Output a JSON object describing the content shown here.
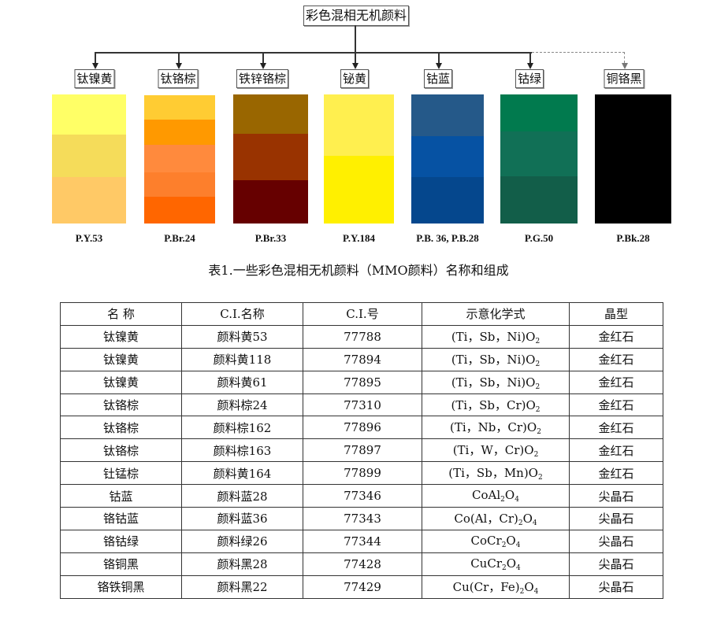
{
  "diagram": {
    "root": "彩色混相无机颜料",
    "children": [
      "钛镍黄",
      "钛铬棕",
      "铁锌铬棕",
      "铋黄",
      "钴蓝",
      "钴绿",
      "铜铬黑"
    ],
    "codes": [
      "P.Y.53",
      "P.Br.24",
      "P.Br.33",
      "P.Y.184",
      "P.B. 36, P.B.28",
      "P.G.50",
      "P.Bk.28"
    ],
    "swatch_colors": [
      [
        "#ffff66",
        "#f5dc5a",
        "#ffc966"
      ],
      [
        "#ffcc33",
        "#ff9900",
        "#ff8a3d",
        "#fd7f2c",
        "#ff6600"
      ],
      [
        "#996600",
        "#993300",
        "#660000"
      ],
      [
        "#ffef4f",
        "#fff000"
      ],
      [
        "#255989",
        "#0652a3",
        "#05478d"
      ],
      [
        "#017a4e",
        "#117056",
        "#125e49"
      ],
      [
        "#000000"
      ]
    ]
  },
  "caption": "表1.一些彩色混相无机颜料（MMO颜料）名称和组成",
  "table": {
    "headers": [
      "名 称",
      "C.I.名称",
      "C.I.号",
      "示意化学式",
      "晶型"
    ],
    "rows": [
      {
        "name": "钛镍黄",
        "ci_name": "颜料黄53",
        "ci_no": "77788",
        "formula": [
          [
            "t",
            "(Ti，Sb，Ni)O"
          ],
          [
            "s",
            "2"
          ]
        ],
        "crystal": "金红石"
      },
      {
        "name": "钛镍黄",
        "ci_name": "颜料黄118",
        "ci_no": "77894",
        "formula": [
          [
            "t",
            "(Ti，Sb，Ni)O"
          ],
          [
            "s",
            "2"
          ]
        ],
        "crystal": "金红石"
      },
      {
        "name": "钛镍黄",
        "ci_name": "颜料黄61",
        "ci_no": "77895",
        "formula": [
          [
            "t",
            "(Ti，Sb，Ni)O"
          ],
          [
            "s",
            "2"
          ]
        ],
        "crystal": "金红石"
      },
      {
        "name": "钛铬棕",
        "ci_name": "颜料棕24",
        "ci_no": "77310",
        "formula": [
          [
            "t",
            "(Ti，Sb，Cr)O"
          ],
          [
            "s",
            "2"
          ]
        ],
        "crystal": "金红石"
      },
      {
        "name": "钛铬棕",
        "ci_name": "颜料棕162",
        "ci_no": "77896",
        "formula": [
          [
            "t",
            "(Ti，Nb，Cr)O"
          ],
          [
            "s",
            "2"
          ]
        ],
        "crystal": "金红石"
      },
      {
        "name": "钛铬棕",
        "ci_name": "颜料棕163",
        "ci_no": "77897",
        "formula": [
          [
            "t",
            "(Ti，W，Cr)O"
          ],
          [
            "s",
            "2"
          ]
        ],
        "crystal": "金红石"
      },
      {
        "name": "钍锰棕",
        "ci_name": "颜料黄164",
        "ci_no": "77899",
        "formula": [
          [
            "t",
            "(Ti，Sb，Mn)O"
          ],
          [
            "s",
            "2"
          ]
        ],
        "crystal": "金红石"
      },
      {
        "name": "钴蓝",
        "ci_name": "颜料蓝28",
        "ci_no": "77346",
        "formula": [
          [
            "t",
            "CoAl"
          ],
          [
            "s",
            "2"
          ],
          [
            "t",
            "O"
          ],
          [
            "s",
            "4"
          ]
        ],
        "crystal": "尖晶石"
      },
      {
        "name": "铬钴蓝",
        "ci_name": "颜料蓝36",
        "ci_no": "77343",
        "formula": [
          [
            "t",
            "Co(Al，Cr)"
          ],
          [
            "s",
            "2"
          ],
          [
            "t",
            "O"
          ],
          [
            "s",
            "4"
          ]
        ],
        "crystal": "尖晶石"
      },
      {
        "name": "铬钴绿",
        "ci_name": "颜料绿26",
        "ci_no": "77344",
        "formula": [
          [
            "t",
            "CoCr"
          ],
          [
            "s",
            "2"
          ],
          [
            "t",
            "O"
          ],
          [
            "s",
            "4"
          ]
        ],
        "crystal": "尖晶石"
      },
      {
        "name": "铬铜黑",
        "ci_name": "颜料黑28",
        "ci_no": "77428",
        "formula": [
          [
            "t",
            "CuCr"
          ],
          [
            "s",
            "2"
          ],
          [
            "t",
            "O"
          ],
          [
            "s",
            "4"
          ]
        ],
        "crystal": "尖晶石"
      },
      {
        "name": "铬铁铜黑",
        "ci_name": "颜料黑22",
        "ci_no": "77429",
        "formula": [
          [
            "t",
            "Cu(Cr，Fe)"
          ],
          [
            "s",
            "2"
          ],
          [
            "t",
            "O"
          ],
          [
            "s",
            "4"
          ]
        ],
        "crystal": "尖晶石"
      }
    ]
  }
}
